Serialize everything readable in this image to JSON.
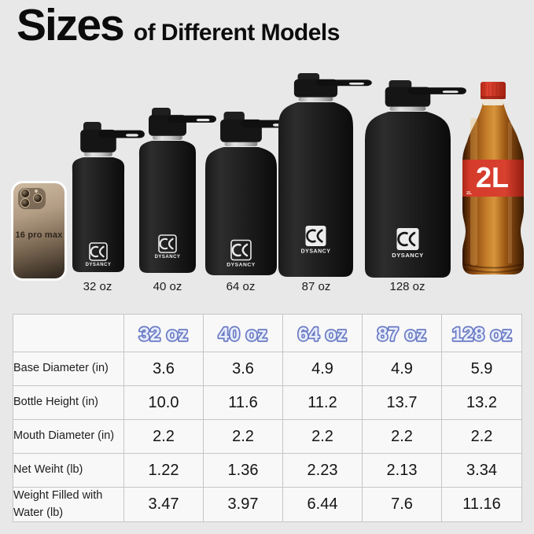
{
  "title": {
    "main": "Sizes",
    "sub": "of Different Models"
  },
  "lineup": {
    "phone_label": "16 pro max",
    "brand": "DYSANCY",
    "cola_label": "2L",
    "bottles": [
      {
        "label": "32 oz"
      },
      {
        "label": "40 oz"
      },
      {
        "label": "64 oz"
      },
      {
        "label": "87 oz"
      },
      {
        "label": "128 oz"
      }
    ]
  },
  "table": {
    "columns": [
      "32 oz",
      "40 oz",
      "64 oz",
      "87 oz",
      "128 oz"
    ],
    "rows": [
      {
        "label": "Base Diameter (in)",
        "values": [
          "3.6",
          "3.6",
          "4.9",
          "4.9",
          "5.9"
        ]
      },
      {
        "label": "Bottle Height (in)",
        "values": [
          "10.0",
          "11.6",
          "11.2",
          "13.7",
          "13.2"
        ]
      },
      {
        "label": "Mouth Diameter (in)",
        "values": [
          "2.2",
          "2.2",
          "2.2",
          "2.2",
          "2.2"
        ]
      },
      {
        "label": "Net Weiht (lb)",
        "values": [
          "1.22",
          "1.36",
          "2.23",
          "2.13",
          "3.34"
        ]
      },
      {
        "label": "Weight Filled with Water (lb)",
        "values": [
          "3.47",
          "3.97",
          "6.44",
          "7.6",
          "11.16"
        ]
      }
    ]
  },
  "colors": {
    "accent_blue": "#6a7ac4",
    "bubble_fill": "#e6ecf9",
    "cola_red": "#d63b2a",
    "bottle_black": "#1b1b1b",
    "background": "#e8e8e8"
  }
}
